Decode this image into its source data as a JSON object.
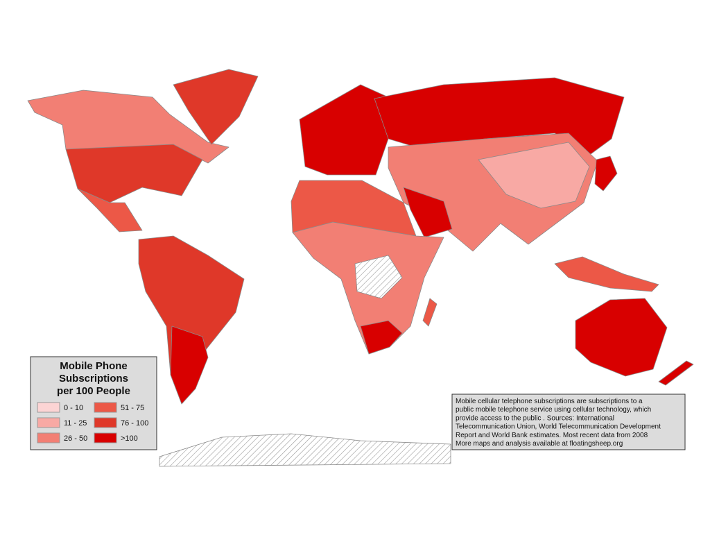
{
  "legend": {
    "title_lines": [
      "Mobile Phone",
      "Subscriptions",
      "per 100 People"
    ],
    "items": [
      {
        "label": "0 - 10",
        "color": "#fcd4d4"
      },
      {
        "label": "11 - 25",
        "color": "#f8a9a4"
      },
      {
        "label": "26 - 50",
        "color": "#f27f74"
      },
      {
        "label": "51 - 75",
        "color": "#ec5847"
      },
      {
        "label": "76 - 100",
        "color": "#df3829"
      },
      {
        "label": ">100",
        "color": "#d80000"
      }
    ]
  },
  "note": {
    "lines": [
      "Mobile cellular telephone subscriptions are subscriptions to a",
      "public mobile telephone service using cellular technology, which",
      "provide access to the public . Sources: International",
      "Telecommunication Union, World Telecommunication Development",
      "Report and World Bank estimates. Most recent data from 2008",
      "More maps and analysis available at floatingsheep.org"
    ]
  }
}
